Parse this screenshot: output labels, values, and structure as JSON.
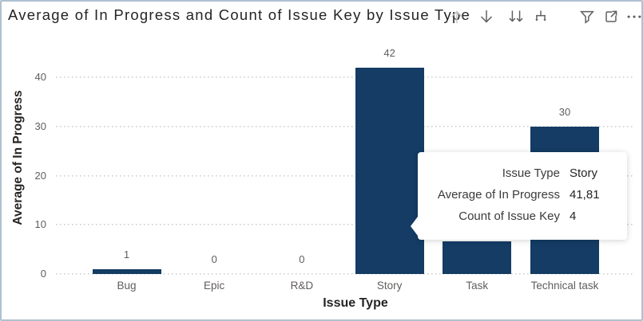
{
  "header": {
    "title": "Average of In Progress and Count of Issue Key by Issue Type",
    "icons": [
      {
        "name": "drill-up",
        "disabled": true
      },
      {
        "name": "drill-down",
        "disabled": false
      },
      {
        "name": "go-to-next-level",
        "disabled": false
      },
      {
        "name": "expand-all-down",
        "disabled": false
      },
      {
        "name": "filters",
        "disabled": false
      },
      {
        "name": "focus-mode",
        "disabled": false
      },
      {
        "name": "more-options",
        "disabled": false
      }
    ]
  },
  "chart_data": {
    "type": "bar",
    "title": "Average of In Progress and Count of Issue Key by Issue Type",
    "xlabel": "Issue Type",
    "ylabel": "Average of In Progress",
    "categories": [
      "Bug",
      "Epic",
      "R&D",
      "Story",
      "Task",
      "Technical task"
    ],
    "series": [
      {
        "name": "Average of In Progress",
        "values": [
          1,
          0,
          0,
          42,
          6.7,
          30
        ]
      }
    ],
    "data_labels": [
      "1",
      "0",
      "0",
      "42",
      "",
      "30"
    ],
    "task_bar_note": "Task bar top and its data label are hidden behind the tooltip",
    "y_ticks": [
      0,
      10,
      20,
      30,
      40
    ],
    "ylim": [
      0,
      46
    ],
    "grid": "dotted horizontal",
    "legend": "none",
    "bar_color": "#143C64",
    "axis_text_color": "#605E5C",
    "title_text_color": "#252423"
  },
  "tooltip": {
    "rows": [
      {
        "label": "Issue Type",
        "value": "Story"
      },
      {
        "label": "Average of In Progress",
        "value": "41,81"
      },
      {
        "label": "Count of Issue Key",
        "value": "4"
      }
    ]
  }
}
